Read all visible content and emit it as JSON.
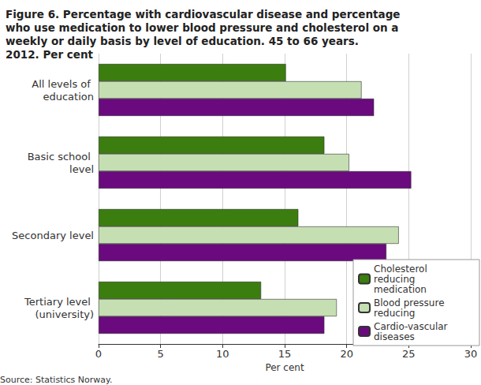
{
  "chart_data": {
    "type": "bar",
    "title": "Figure 6. Percentage with cardiovascular disease and percentage who use medication to lower blood pressure and cholesterol on a weekly or daily basis by level of education. 45 to 66 years. 2012. Per cent",
    "source": "Source: Statistics Norway.",
    "x_label": "Per cent",
    "orientation": "horizontal",
    "categories": [
      "All levels of education",
      "Basic school level",
      "Secondary level",
      "Tertiary level (university)"
    ],
    "series": [
      {
        "name": "Cholesterol reducing medication",
        "color": "#3b7d0e",
        "values": [
          15.1,
          18.2,
          16.1,
          13.1
        ]
      },
      {
        "name": "Blood pressure reducing",
        "color": "#c5dfb3",
        "values": [
          21.2,
          20.2,
          24.2,
          19.2
        ]
      },
      {
        "name": "Cardio-vascular diseases",
        "color": "#6a0a7e",
        "values": [
          22.2,
          25.2,
          23.2,
          18.2
        ]
      }
    ],
    "xlim": [
      0,
      30
    ],
    "xticks": [
      0,
      5,
      10,
      15,
      20,
      25,
      30
    ],
    "grid": true,
    "legend": "bottom-right"
  }
}
